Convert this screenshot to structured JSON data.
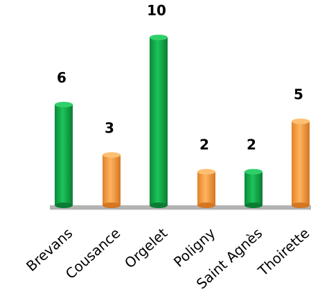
{
  "chart_data": {
    "type": "bar",
    "title": "",
    "xlabel": "",
    "ylabel": "",
    "categories": [
      "Brevans",
      "Cousance",
      "Orgelet",
      "Poligny",
      "Saint Agnès",
      "Thoirette"
    ],
    "values": [
      6,
      3,
      10,
      2,
      2,
      5
    ],
    "ylim": [
      0,
      10
    ],
    "grid": false,
    "legend": "none",
    "data_labels": [
      "6",
      "3",
      "10",
      "2",
      "2",
      "5"
    ],
    "bar_colors": [
      "#13a84a",
      "#f29a3d",
      "#13a84a",
      "#f29a3d",
      "#13a84a",
      "#f29a3d"
    ]
  }
}
